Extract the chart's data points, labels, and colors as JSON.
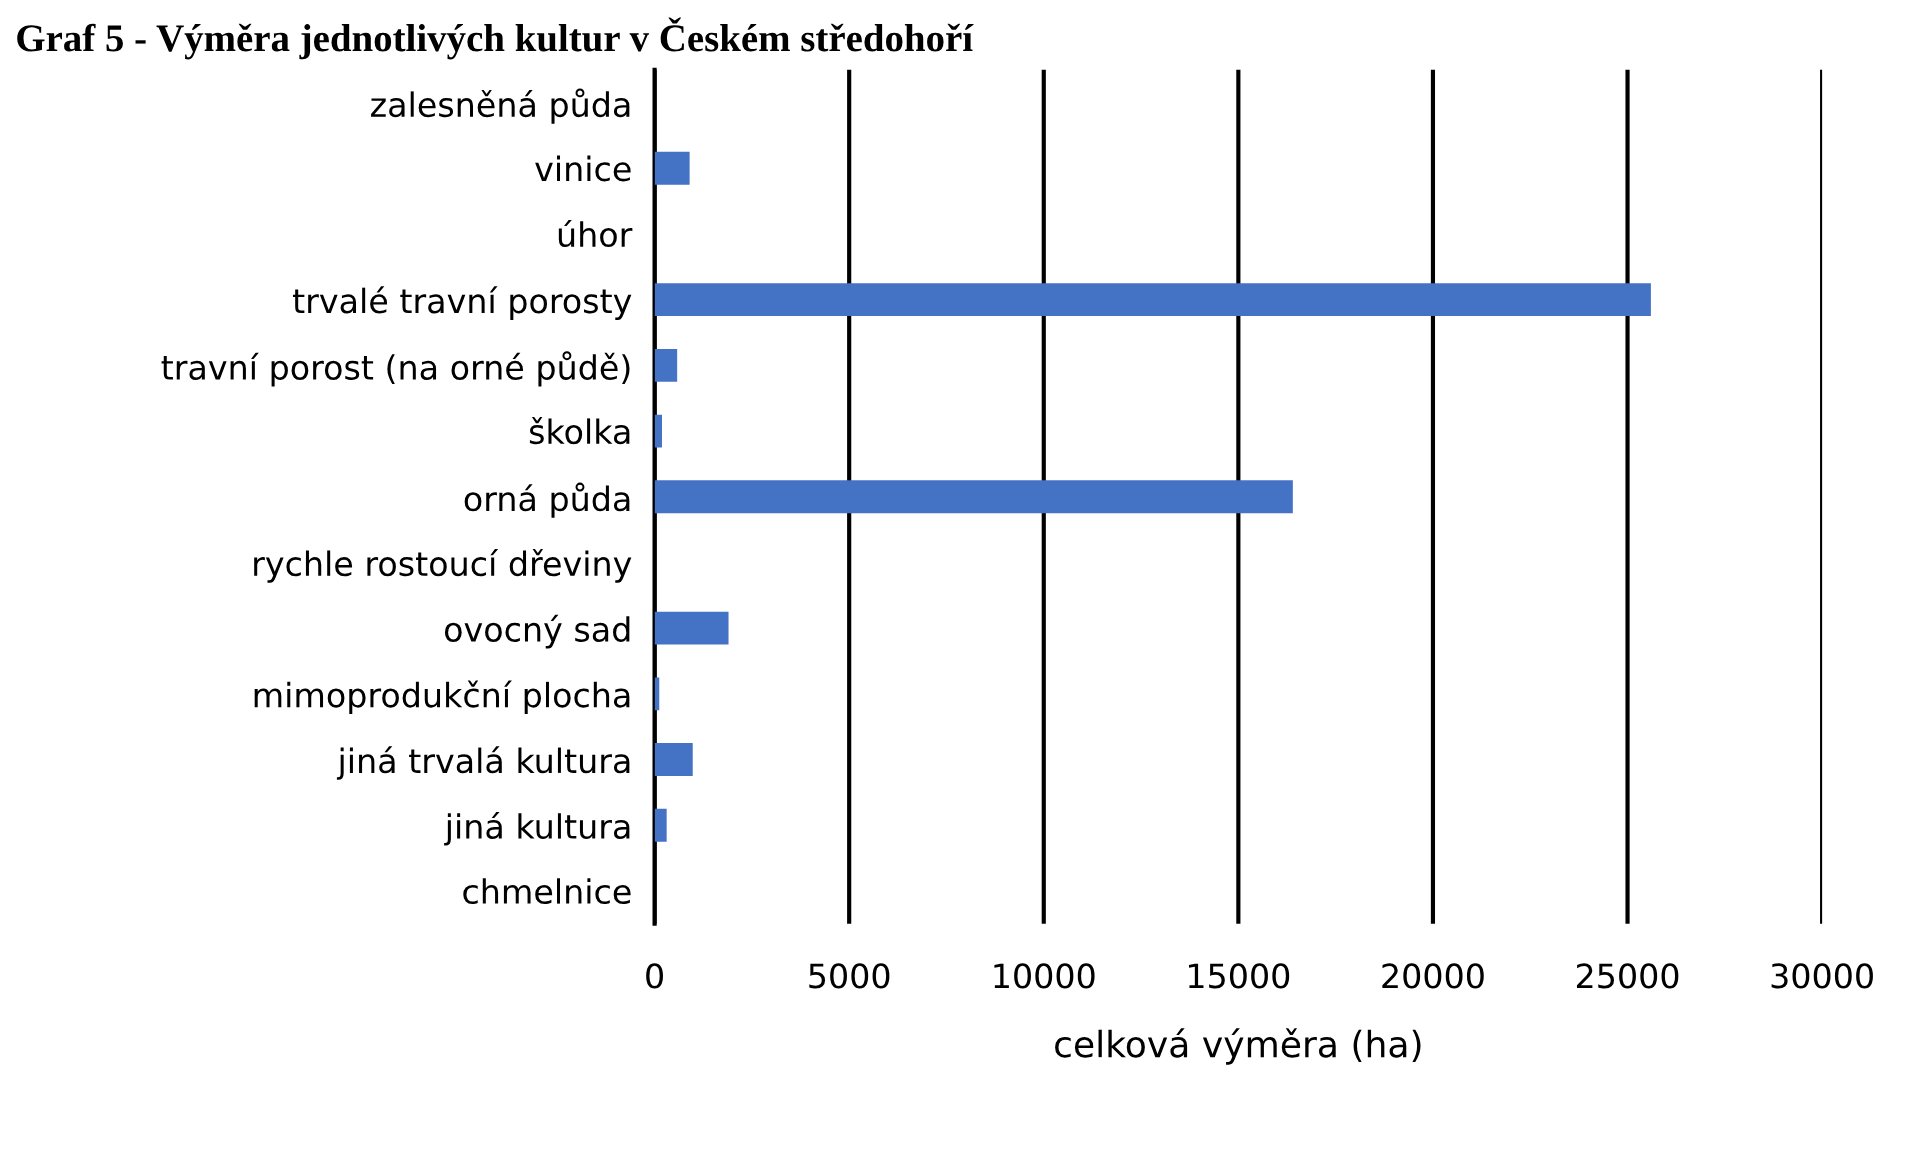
{
  "chart_data": {
    "type": "bar",
    "orientation": "horizontal",
    "title": "Graf 5 - Výměra jednotlivých kultur v Českém středohoří",
    "xlabel": "celková výměra (ha)",
    "categories": [
      "zalesněná půda",
      "vinice",
      "úhor",
      "trvalé travní porosty",
      "travní porost (na orné půdě)",
      "školka",
      "orná půda",
      "rychle rostoucí dřeviny",
      "ovocný sad",
      "mimoprodukční plocha",
      "jiná trvalá kultura",
      "jiná kultura",
      "chmelnice"
    ],
    "values": [
      0,
      900,
      0,
      25600,
      580,
      190,
      16400,
      0,
      1900,
      120,
      980,
      310,
      0
    ],
    "color": "#4472c4",
    "xlim": [
      0,
      30000
    ],
    "xticks": [
      0,
      5000,
      10000,
      15000,
      20000,
      25000,
      30000
    ],
    "grid": "x"
  }
}
